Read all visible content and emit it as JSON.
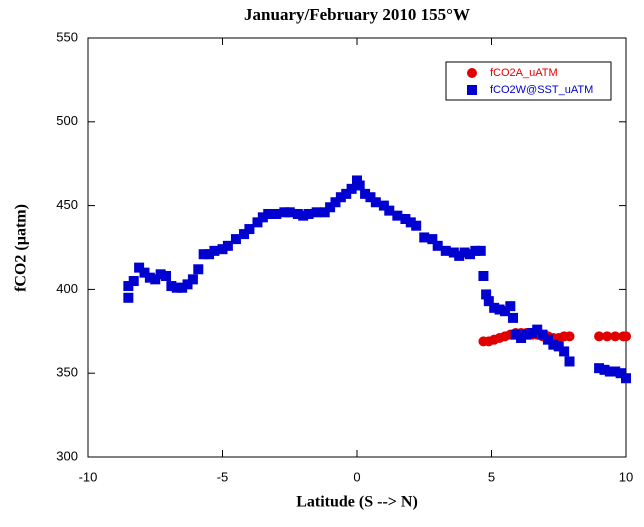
{
  "chart_data": {
    "type": "scatter",
    "title": "January/February 2010 155°W",
    "x_label": "Latitude (S --> N)",
    "y_label": "fCO2 (µatm)",
    "xlim": [
      -10,
      10
    ],
    "xticks": [
      -10,
      -5,
      0,
      5,
      10
    ],
    "ylim": [
      300,
      550
    ],
    "yticks": [
      300,
      350,
      400,
      450,
      500,
      550
    ],
    "legend": "upper right",
    "series": [
      {
        "name": "fCO2A_uATM",
        "color": "#e00000",
        "marker": "circle",
        "x": [
          4.7,
          4.9,
          5.1,
          5.3,
          5.5,
          5.7,
          5.9,
          6.1,
          6.3,
          6.5,
          6.7,
          6.9,
          7.1,
          7.3,
          7.5,
          7.7,
          7.9,
          9.0,
          9.3,
          9.6,
          9.9,
          10
        ],
        "values": [
          369,
          369,
          370,
          371,
          372,
          373,
          374,
          374,
          374,
          373,
          373,
          372,
          372,
          371,
          371,
          372,
          372,
          372,
          372,
          372,
          372,
          372
        ]
      },
      {
        "name": "fCO2W@SST_uATM",
        "color": "#0000d0",
        "marker": "square",
        "x": [
          -8.5,
          -8.5,
          -8.3,
          -8.1,
          -7.9,
          -7.7,
          -7.5,
          -7.3,
          -7.1,
          -6.9,
          -6.7,
          -6.5,
          -6.3,
          -6.1,
          -5.9,
          -5.7,
          -5.5,
          -5.3,
          -5.0,
          -4.8,
          -4.5,
          -4.2,
          -4.0,
          -3.7,
          -3.5,
          -3.3,
          -3.0,
          -2.7,
          -2.5,
          -2.2,
          -2.0,
          -1.8,
          -1.5,
          -1.2,
          -1.0,
          -0.8,
          -0.6,
          -0.4,
          -0.2,
          0,
          0.1,
          0.3,
          0.5,
          0.7,
          1.0,
          1.2,
          1.5,
          1.8,
          2.0,
          2.2,
          2.5,
          2.8,
          3.0,
          3.3,
          3.6,
          3.8,
          4.0,
          4.2,
          4.4,
          4.6,
          4.7,
          4.8,
          4.9,
          5.1,
          5.3,
          5.5,
          5.7,
          5.8,
          5.9,
          6.1,
          6.3,
          6.5,
          6.7,
          6.9,
          7.1,
          7.3,
          7.5,
          7.7,
          7.9,
          9.0,
          9.2,
          9.4,
          9.6,
          9.8,
          10
        ],
        "values": [
          395,
          402,
          405,
          413,
          410,
          407,
          406,
          409,
          408,
          402,
          401,
          401,
          403,
          406,
          412,
          421,
          421,
          423,
          424,
          426,
          430,
          433,
          436,
          440,
          443,
          445,
          445,
          446,
          446,
          445,
          444,
          445,
          446,
          446,
          449,
          452,
          455,
          457,
          460,
          465,
          462,
          457,
          455,
          452,
          450,
          447,
          444,
          442,
          440,
          438,
          431,
          430,
          426,
          423,
          422,
          420,
          422,
          421,
          423,
          423,
          408,
          397,
          393,
          389,
          388,
          387,
          390,
          383,
          373,
          371,
          373,
          374,
          376,
          373,
          370,
          367,
          366,
          363,
          357,
          353,
          352,
          351,
          351,
          350,
          347
        ]
      }
    ]
  }
}
